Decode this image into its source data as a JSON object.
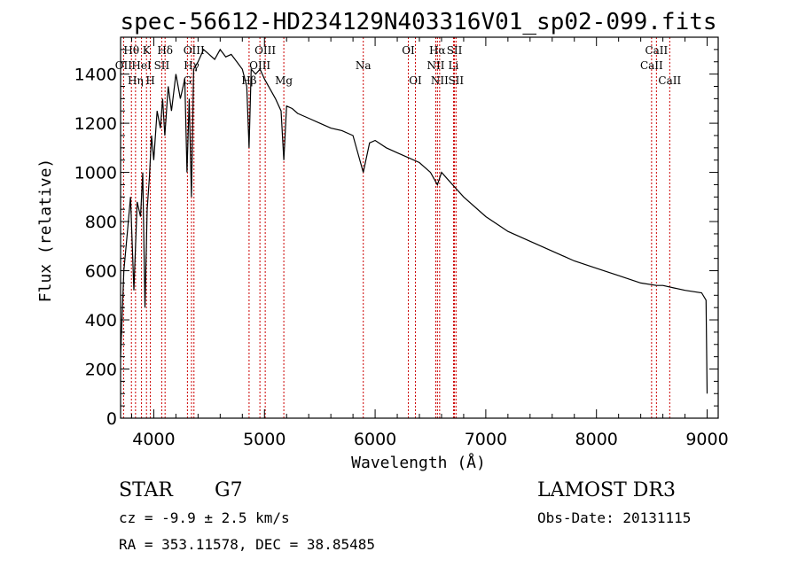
{
  "chart_data": {
    "type": "line",
    "title": "spec-56612-HD234129N403316V01_sp02-099.fits",
    "xlabel": "Wavelength (Å)",
    "ylabel": "Flux (relative)",
    "xlim": [
      3700,
      9100
    ],
    "ylim": [
      0,
      1550
    ],
    "xticks": [
      4000,
      5000,
      6000,
      7000,
      8000,
      9000
    ],
    "xtick_labels": [
      "4000",
      "5000",
      "6000",
      "7000",
      "8000",
      "9000"
    ],
    "yticks": [
      0,
      200,
      400,
      600,
      800,
      1000,
      1200,
      1400
    ],
    "ytick_labels": [
      "0",
      "200",
      "400",
      "600",
      "800",
      "1000",
      "1200",
      "1400"
    ],
    "series": [
      {
        "name": "flux",
        "x": [
          3700,
          3730,
          3760,
          3790,
          3820,
          3850,
          3880,
          3900,
          3920,
          3940,
          3960,
          3980,
          4000,
          4030,
          4060,
          4080,
          4100,
          4130,
          4160,
          4200,
          4240,
          4280,
          4300,
          4320,
          4340,
          4360,
          4400,
          4450,
          4500,
          4550,
          4600,
          4650,
          4700,
          4750,
          4800,
          4840,
          4861,
          4880,
          4920,
          4960,
          5000,
          5050,
          5100,
          5150,
          5175,
          5200,
          5250,
          5300,
          5400,
          5500,
          5600,
          5700,
          5800,
          5893,
          5950,
          6000,
          6100,
          6200,
          6300,
          6400,
          6500,
          6563,
          6600,
          6700,
          6800,
          7000,
          7200,
          7400,
          7600,
          7800,
          8000,
          8200,
          8400,
          8542,
          8600,
          8700,
          8800,
          8950,
          8990,
          9000
        ],
        "y": [
          250,
          600,
          750,
          900,
          520,
          880,
          820,
          1000,
          450,
          850,
          980,
          1150,
          1050,
          1250,
          1180,
          1300,
          1150,
          1350,
          1250,
          1400,
          1300,
          1380,
          1000,
          1300,
          900,
          1420,
          1450,
          1500,
          1480,
          1460,
          1500,
          1470,
          1480,
          1450,
          1420,
          1350,
          1100,
          1420,
          1400,
          1420,
          1380,
          1340,
          1300,
          1250,
          1050,
          1270,
          1260,
          1240,
          1220,
          1200,
          1180,
          1170,
          1150,
          1000,
          1120,
          1130,
          1100,
          1080,
          1060,
          1040,
          1000,
          950,
          1000,
          950,
          900,
          820,
          760,
          720,
          680,
          640,
          610,
          580,
          550,
          540,
          540,
          530,
          520,
          510,
          480,
          100
        ]
      }
    ],
    "spectral_lines": [
      {
        "label": "Hθ",
        "wavelength": 3798,
        "row": 1
      },
      {
        "label": "OII",
        "wavelength": 3727,
        "row": 2
      },
      {
        "label": "Hη",
        "wavelength": 3835,
        "row": 3
      },
      {
        "label": "HeI",
        "wavelength": 3889,
        "row": 2
      },
      {
        "label": "K",
        "wavelength": 3934,
        "row": 1
      },
      {
        "label": "H",
        "wavelength": 3969,
        "row": 3
      },
      {
        "label": "SII",
        "wavelength": 4072,
        "row": 2
      },
      {
        "label": "Hδ",
        "wavelength": 4102,
        "row": 1
      },
      {
        "label": "OIII",
        "wavelength": 4363,
        "row": 1
      },
      {
        "label": "Hγ",
        "wavelength": 4341,
        "row": 2
      },
      {
        "label": "G",
        "wavelength": 4304,
        "row": 3
      },
      {
        "label": "Hβ",
        "wavelength": 4861,
        "row": 3
      },
      {
        "label": "OIII",
        "wavelength": 5007,
        "row": 1
      },
      {
        "label": "OIII",
        "wavelength": 4959,
        "row": 2
      },
      {
        "label": "Mg",
        "wavelength": 5175,
        "row": 3
      },
      {
        "label": "Na",
        "wavelength": 5893,
        "row": 2
      },
      {
        "label": "OI",
        "wavelength": 6300,
        "row": 1
      },
      {
        "label": "OI",
        "wavelength": 6364,
        "row": 3
      },
      {
        "label": "Hα",
        "wavelength": 6563,
        "row": 1
      },
      {
        "label": "NII",
        "wavelength": 6548,
        "row": 2
      },
      {
        "label": "NII",
        "wavelength": 6583,
        "row": 3
      },
      {
        "label": "SII",
        "wavelength": 6717,
        "row": 1
      },
      {
        "label": "Li",
        "wavelength": 6708,
        "row": 2
      },
      {
        "label": "SII",
        "wavelength": 6731,
        "row": 3
      },
      {
        "label": "CaII",
        "wavelength": 8542,
        "row": 1
      },
      {
        "label": "CaII",
        "wavelength": 8498,
        "row": 2
      },
      {
        "label": "CaII",
        "wavelength": 8662,
        "row": 3
      }
    ]
  },
  "info": {
    "object_type": "STAR",
    "subclass": "G7",
    "survey": "LAMOST DR3",
    "cz": "cz = -9.9 ± 2.5 km/s",
    "obs_date": "Obs-Date: 20131115",
    "coords": "RA = 353.11578, DEC =  38.85485"
  },
  "colors": {
    "line": "#000000",
    "marker": "#cc0000",
    "background": "#ffffff"
  }
}
